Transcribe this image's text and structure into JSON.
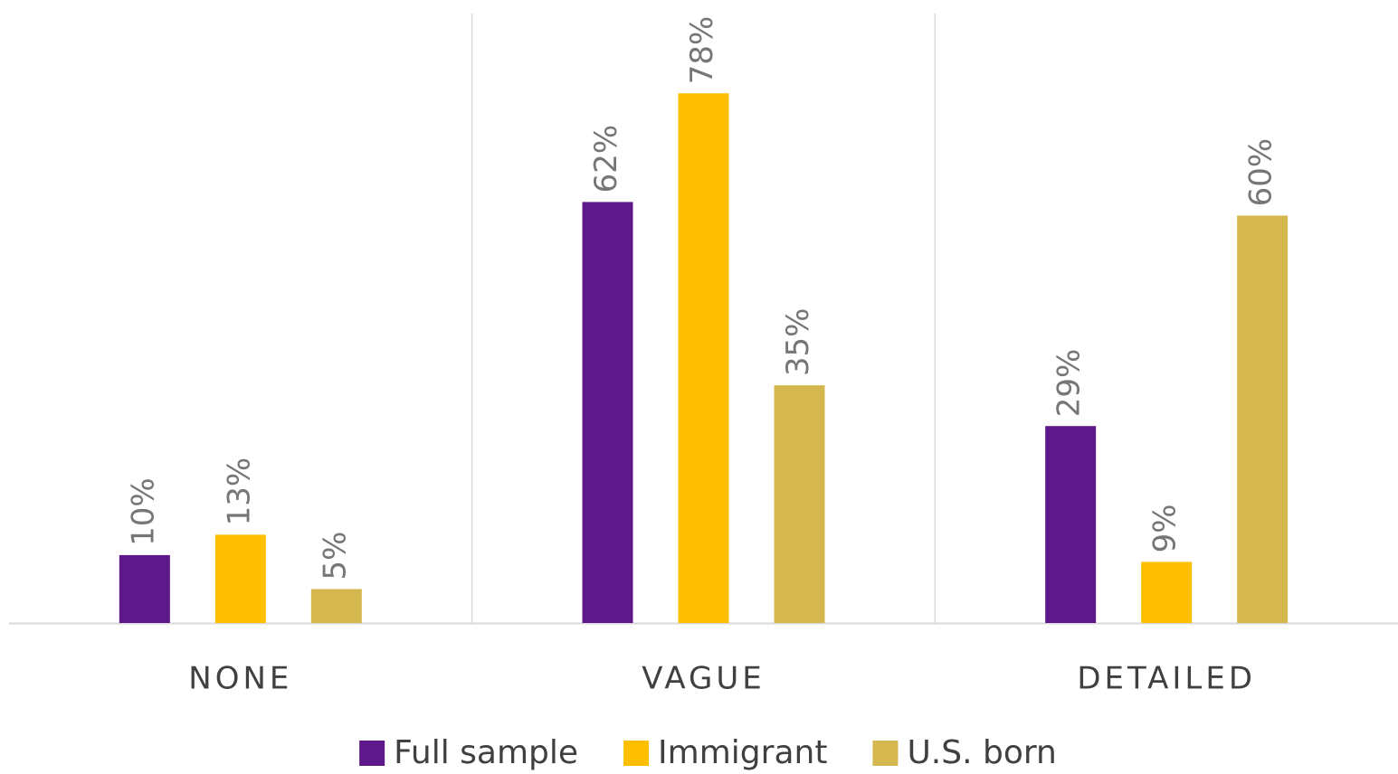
{
  "chart_data": {
    "type": "bar",
    "categories": [
      "NONE",
      "VAGUE",
      "DETAILED"
    ],
    "series": [
      {
        "name": "Full sample",
        "color": "#5f188a",
        "values": [
          10,
          62,
          29
        ],
        "value_labels": [
          "10%",
          "62%",
          "29%"
        ]
      },
      {
        "name": "Immigrant",
        "color": "#fdbf00",
        "values": [
          13,
          78,
          9
        ],
        "value_labels": [
          "13%",
          "78%",
          "9%"
        ]
      },
      {
        "name": "U.S. born",
        "color": "#d4b74f",
        "values": [
          5,
          35,
          60
        ],
        "value_labels": [
          "5%",
          "35%",
          "60%"
        ]
      }
    ],
    "legend": "bottom"
  }
}
